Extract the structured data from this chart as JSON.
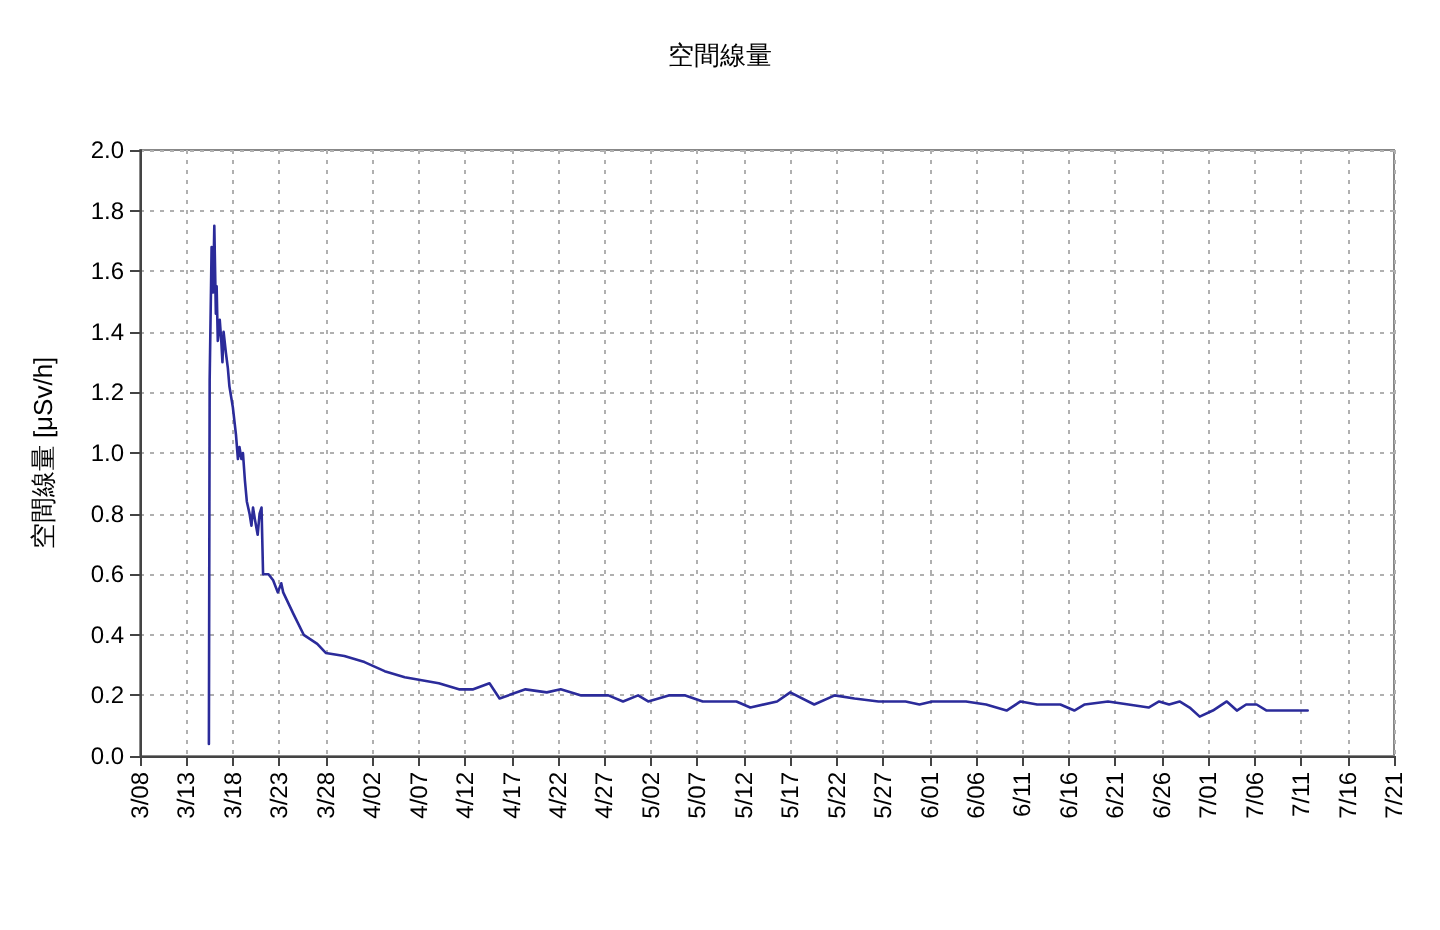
{
  "chart_data": {
    "type": "line",
    "title": "空間線量",
    "ylabel": "空間線量 [μSv/h]",
    "grid": true,
    "marker": "none",
    "line_style": "solid",
    "xlim": [
      "--03-08",
      "--07-21"
    ],
    "xticks": [
      {
        "value": "--03-08",
        "label": "3/08"
      },
      {
        "value": "--03-13",
        "label": "3/13"
      },
      {
        "value": "--03-18",
        "label": "3/18"
      },
      {
        "value": "--03-23",
        "label": "3/23"
      },
      {
        "value": "--03-28",
        "label": "3/28"
      },
      {
        "value": "--04-02",
        "label": "4/02"
      },
      {
        "value": "--04-07",
        "label": "4/07"
      },
      {
        "value": "--04-12",
        "label": "4/12"
      },
      {
        "value": "--04-17",
        "label": "4/17"
      },
      {
        "value": "--04-22",
        "label": "4/22"
      },
      {
        "value": "--04-27",
        "label": "4/27"
      },
      {
        "value": "--05-02",
        "label": "5/02"
      },
      {
        "value": "--05-07",
        "label": "5/07"
      },
      {
        "value": "--05-12",
        "label": "5/12"
      },
      {
        "value": "--05-17",
        "label": "5/17"
      },
      {
        "value": "--05-22",
        "label": "5/22"
      },
      {
        "value": "--05-27",
        "label": "5/27"
      },
      {
        "value": "--06-01",
        "label": "6/01"
      },
      {
        "value": "--06-06",
        "label": "6/06"
      },
      {
        "value": "--06-11",
        "label": "6/11"
      },
      {
        "value": "--06-16",
        "label": "6/16"
      },
      {
        "value": "--06-21",
        "label": "6/21"
      },
      {
        "value": "--06-26",
        "label": "6/26"
      },
      {
        "value": "--07-01",
        "label": "7/01"
      },
      {
        "value": "--07-06",
        "label": "7/06"
      },
      {
        "value": "--07-11",
        "label": "7/11"
      },
      {
        "value": "--07-16",
        "label": "7/16"
      },
      {
        "value": "--07-21",
        "label": "7/21"
      }
    ],
    "ylim": [
      0,
      2
    ],
    "yticks": [
      {
        "value": 0,
        "label": "0.0"
      },
      {
        "value": 0.2,
        "label": "0.2"
      },
      {
        "value": 0.4,
        "label": "0.4"
      },
      {
        "value": 0.6,
        "label": "0.6"
      },
      {
        "value": 0.8,
        "label": "0.8"
      },
      {
        "value": 1,
        "label": "1.0"
      },
      {
        "value": 1.2,
        "label": "1.2"
      },
      {
        "value": 1.4,
        "label": "1.4"
      },
      {
        "value": 1.6,
        "label": "1.6"
      },
      {
        "value": 1.8,
        "label": "1.8"
      },
      {
        "value": 2,
        "label": "2.0"
      }
    ],
    "series": [
      {
        "color": "#2b2b9a",
        "x": [
          "--03-15T10:00",
          "--03-15T12:00",
          "--03-15T17:00",
          "--03-15T21:00",
          "--03-16T00:00",
          "--03-16T04:00",
          "--03-16T06:00",
          "--03-16T09:00",
          "--03-16T14:00",
          "--03-16T18:00",
          "--03-16T21:00",
          "--03-17T00:00",
          "--03-17T06:00",
          "--03-17T11:00",
          "--03-17T15:00",
          "--03-18T00:00",
          "--03-18T08:00",
          "--03-18T13:00",
          "--03-18T17:00",
          "--03-18T22:00",
          "--03-19T02:00",
          "--03-19T07:00",
          "--03-19T12:00",
          "--03-19T19:00",
          "--03-20T00:00",
          "--03-20T04:00",
          "--03-20T09:00",
          "--03-20T16:00",
          "--03-20T21:00",
          "--03-21T02:00",
          "--03-21T06:00",
          "--03-21T20:00",
          "--03-22T08:00",
          "--03-22T20:00",
          "--03-23T05:00",
          "--03-23T10:00",
          "--03-24T12:00",
          "--03-25T15:00",
          "--03-27T02:00",
          "--03-28T00:00",
          "--03-30T00:00",
          "--04-01T04:00",
          "--04-03T08:00",
          "--04-05T12:00",
          "--04-09T04:00",
          "--04-11T08:00",
          "--04-12T21:00",
          "--04-14T15:00",
          "--04-15T17:00",
          "--04-18T12:00",
          "--04-20T19:00",
          "--04-22T07:00",
          "--04-24T12:00",
          "--04-27T10:00",
          "--04-29T00:00",
          "--04-30T15:00",
          "--05-01T17:00",
          "--05-03T22:00",
          "--05-05T17:00",
          "--05-07T14:00",
          "--05-11T05:00",
          "--05-12T17:00",
          "--05-15T14:00",
          "--05-17T00:00",
          "--05-19T14:00",
          "--05-21T19:00",
          "--05-23T22:00",
          "--05-26T12:00",
          "--05-29T10:00",
          "--05-30T22:00",
          "--06-01T07:00",
          "--06-02T19:00",
          "--06-04T22:00",
          "--06-07T02:00",
          "--06-09T07:00",
          "--06-10T19:00",
          "--06-12T14:00",
          "--06-15T02:00",
          "--06-16T14:00",
          "--06-17T17:00",
          "--06-20T05:00",
          "--06-22T10:00",
          "--06-24T14:00",
          "--06-25T17:00",
          "--06-26T19:00",
          "--06-27T22:00",
          "--06-29T00:00",
          "--06-30T02:00",
          "--07-01T12:00",
          "--07-03T00:00",
          "--07-04T02:00",
          "--07-05T02:00",
          "--07-06T05:00",
          "--07-07T07:00",
          "--07-09T05:00",
          "--07-11T17:00"
        ],
        "values": [
          0.04,
          1.24,
          1.68,
          1.53,
          1.75,
          1.46,
          1.55,
          1.37,
          1.44,
          1.37,
          1.3,
          1.4,
          1.33,
          1.28,
          1.22,
          1.15,
          1.06,
          0.98,
          1.02,
          0.98,
          1.0,
          0.91,
          0.84,
          0.8,
          0.76,
          0.82,
          0.78,
          0.73,
          0.8,
          0.82,
          0.6,
          0.6,
          0.58,
          0.54,
          0.57,
          0.54,
          0.47,
          0.4,
          0.37,
          0.34,
          0.33,
          0.31,
          0.28,
          0.26,
          0.24,
          0.22,
          0.22,
          0.24,
          0.19,
          0.22,
          0.21,
          0.22,
          0.2,
          0.2,
          0.18,
          0.2,
          0.18,
          0.2,
          0.2,
          0.18,
          0.18,
          0.16,
          0.18,
          0.21,
          0.17,
          0.2,
          0.19,
          0.18,
          0.18,
          0.17,
          0.18,
          0.18,
          0.18,
          0.17,
          0.15,
          0.18,
          0.17,
          0.17,
          0.15,
          0.17,
          0.18,
          0.17,
          0.16,
          0.18,
          0.17,
          0.18,
          0.16,
          0.13,
          0.15,
          0.18,
          0.15,
          0.17,
          0.17,
          0.15,
          0.15,
          0.15
        ]
      }
    ]
  }
}
